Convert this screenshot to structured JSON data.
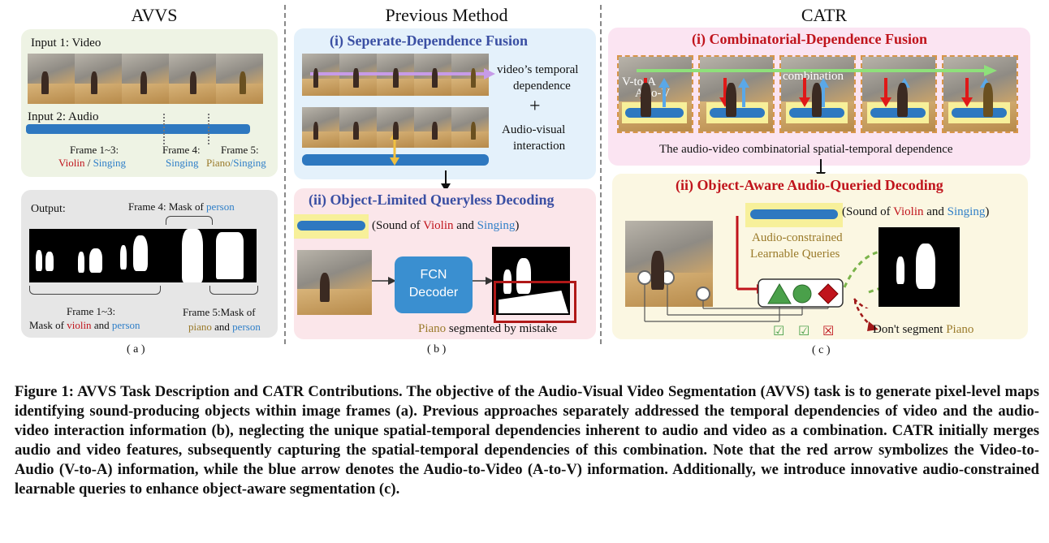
{
  "figure": {
    "col_a_title": "AVVS",
    "col_b_title": "Previous Method",
    "col_c_title": "CATR",
    "panel_a": {
      "input1": "Input 1:  Video",
      "input2": "Input 2:  Audio",
      "frame13": "Frame 1~3:",
      "violin": "Violin",
      "slash": " / ",
      "singing": "Singing",
      "frame4": "Frame 4:",
      "frame4_val": "Singing",
      "frame5": "Frame 5:",
      "frame5_piano": "Piano",
      "frame5_singing": "/Singing",
      "output": "Output:",
      "mask_frame4_prefix": "Frame 4: Mask of ",
      "mask_frame4_person": "person",
      "mask_frame13_line1": "Frame 1~3:",
      "mask_frame13_prefix": "Mask of ",
      "mask_frame13_violin": "violin",
      "mask_frame13_and": " and ",
      "mask_frame13_person": "person",
      "mask_frame5_line1": "Frame 5:Mask of",
      "mask_frame5_piano": "piano",
      "mask_frame5_and": " and ",
      "mask_frame5_person": "person",
      "label": "( a )"
    },
    "panel_b": {
      "title_i": "(i) Seperate-Dependence Fusion",
      "temporal_line1": "video’s temporal",
      "temporal_line2": "dependence",
      "plus": "+",
      "av_line1": "Audio-visual",
      "av_line2": "interaction",
      "title_ii": "(ii) Object-Limited Queryless Decoding",
      "sound_prefix": "(Sound of ",
      "sound_violin": "Violin",
      "sound_and": " and ",
      "sound_singing": "Singing",
      "sound_suffix": ")",
      "fcn_line1": "FCN",
      "fcn_line2": "Decoder",
      "mistake_piano": "Piano",
      "mistake_rest": " segmented by mistake",
      "label": "( b )"
    },
    "panel_c": {
      "title_i": "(i) Combinatorial-Dependence Fusion",
      "v_to_a": "V-to-A",
      "a_to_v": "A-to-V",
      "combination": "combination",
      "combo_desc": "The audio-video combinatorial spatial-temporal dependence",
      "title_ii": "(ii) Object-Aware Audio-Queried Decoding",
      "sound_prefix": "(Sound of  ",
      "sound_violin": "Violin",
      "sound_and": " and ",
      "sound_singing": "Singing",
      "sound_suffix": ")",
      "queries_line1": "Audio-constrained",
      "queries_line2": "Learnable Queries",
      "check1": "☑",
      "check2": "☑",
      "cross": "☒",
      "dont_prefix": "Don't segment ",
      "dont_piano": "Piano",
      "label": "( c )"
    },
    "caption": "Figure 1: AVVS Task Description and CATR Contributions. The objective of the Audio-Visual Video Segmentation (AVVS) task is to generate pixel-level maps identifying sound-producing objects within image frames (a). Previous approaches separately addressed the temporal dependencies of video and the audio-video interaction information (b), neglecting the unique spatial-temporal dependencies inherent to audio and video as a combination. CATR initially merges audio and video features, subsequently capturing the spatial-temporal dependencies of this combination. Note that the red arrow symbolizes the Video-to-Audio (V-to-A) information, while the blue arrow denotes the Audio-to-Video (A-to-V) information. Additionally, we introduce innovative audio-constrained learnable queries to enhance object-aware segmentation (c)."
  }
}
